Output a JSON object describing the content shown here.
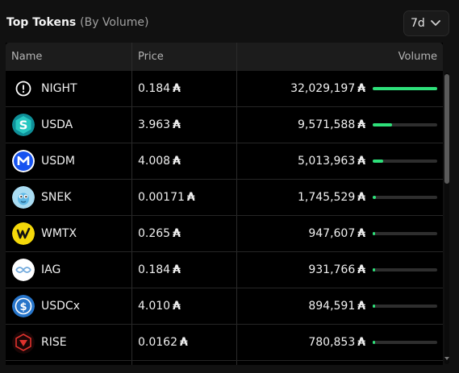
{
  "header": {
    "title": "Top Tokens",
    "subtitle": "(By Volume)",
    "range": {
      "value": "7d"
    }
  },
  "columns": {
    "name": "Name",
    "price": "Price",
    "volume": "Volume"
  },
  "currency_symbol": "₳",
  "accent_color": "#2ee07a",
  "rows": [
    {
      "symbol": "NIGHT",
      "price": "0.184",
      "volume": "32,029,197",
      "bar_fraction": 1.0,
      "icon": "night-icon"
    },
    {
      "symbol": "USDA",
      "price": "3.963",
      "volume": "9,571,588",
      "bar_fraction": 0.3,
      "icon": "usda-icon"
    },
    {
      "symbol": "USDM",
      "price": "4.008",
      "volume": "5,013,963",
      "bar_fraction": 0.16,
      "icon": "usdm-icon"
    },
    {
      "symbol": "SNEK",
      "price": "0.00171",
      "volume": "1,745,529",
      "bar_fraction": 0.055,
      "icon": "snek-icon"
    },
    {
      "symbol": "WMTX",
      "price": "0.265",
      "volume": "947,607",
      "bar_fraction": 0.03,
      "icon": "wmtx-icon"
    },
    {
      "symbol": "IAG",
      "price": "0.184",
      "volume": "931,766",
      "bar_fraction": 0.03,
      "icon": "iag-icon"
    },
    {
      "symbol": "USDCx",
      "price": "4.010",
      "volume": "894,591",
      "bar_fraction": 0.028,
      "icon": "usdcx-icon"
    },
    {
      "symbol": "RISE",
      "price": "0.0162",
      "volume": "780,853",
      "bar_fraction": 0.024,
      "icon": "rise-icon"
    }
  ]
}
